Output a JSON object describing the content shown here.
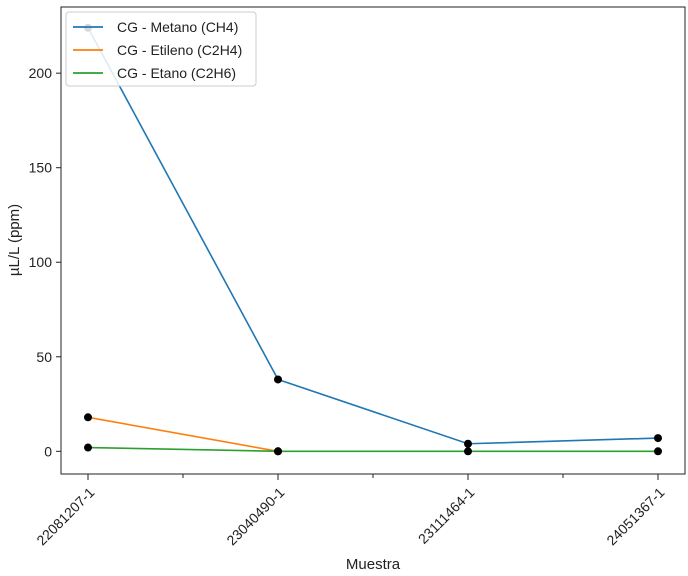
{
  "chart_data": {
    "type": "line",
    "title": "",
    "xlabel": "Muestra",
    "ylabel": "µL/L (ppm)",
    "categories": [
      "22081207-1",
      "23040490-1",
      "23111464-1",
      "24051367-1"
    ],
    "ylim": [
      -12,
      235
    ],
    "yticks": [
      0,
      50,
      100,
      150,
      200
    ],
    "grid": false,
    "legend_position": "top-left",
    "marker_color": "#000000",
    "series": [
      {
        "name": "CG - Metano (CH4)",
        "color": "#1f77b4",
        "values": [
          224,
          38,
          4,
          7
        ]
      },
      {
        "name": "CG - Etileno (C2H4)",
        "color": "#ff7f0e",
        "values": [
          18,
          0,
          null,
          null
        ]
      },
      {
        "name": "CG - Etano (C2H6)",
        "color": "#2ca02c",
        "values": [
          2,
          0,
          0,
          0
        ]
      }
    ]
  }
}
